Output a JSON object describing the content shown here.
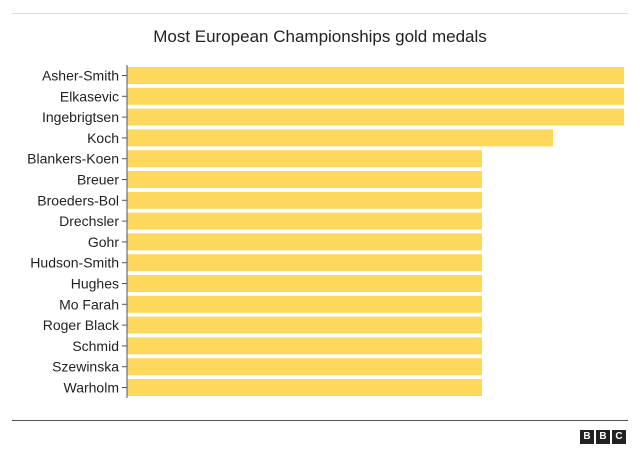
{
  "chart_data": {
    "type": "bar",
    "orientation": "horizontal",
    "title": "Most European Championships gold medals",
    "xlabel": "",
    "ylabel": "",
    "categories": [
      "Asher-Smith",
      "Elkasevic",
      "Ingebrigtsen",
      "Koch",
      "Blankers-Koen",
      "Breuer",
      "Broeders-Bol",
      "Drechsler",
      "Gohr",
      "Hudson-Smith",
      "Hughes",
      "Mo Farah",
      "Roger Black",
      "Schmid",
      "Szewinska",
      "Warholm"
    ],
    "values": [
      7,
      7,
      7,
      6,
      5,
      5,
      5,
      5,
      5,
      5,
      5,
      5,
      5,
      5,
      5,
      5
    ],
    "xlim": [
      0,
      7
    ],
    "grid": false,
    "bar_color": "#fdd85d"
  },
  "branding": {
    "letters": [
      "B",
      "B",
      "C"
    ]
  }
}
